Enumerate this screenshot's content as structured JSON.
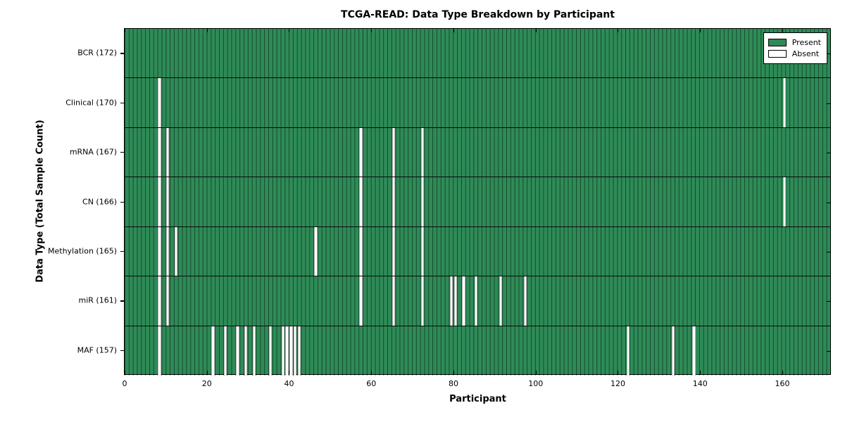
{
  "chart_data": {
    "type": "heatmap",
    "title": "TCGA-READ: Data Type Breakdown by Participant",
    "xlabel": "Participant",
    "ylabel": "Data Type (Total Sample Count)",
    "n_participants": 172,
    "x_ticks": [
      0,
      20,
      40,
      60,
      80,
      100,
      120,
      140,
      160
    ],
    "x_range": [
      0,
      172
    ],
    "grid": "cell-edges",
    "legend_position": "upper right",
    "legend": [
      {
        "label": "Present",
        "color": "#2E8B57"
      },
      {
        "label": "Absent",
        "color": "#FFFFFF"
      }
    ],
    "colors": {
      "present": "#2E8B57",
      "absent": "#FFFFFF",
      "cell_edge": "#1a3d29",
      "axis": "#000000"
    },
    "rows": [
      {
        "label": "BCR (172)",
        "data_type": "BCR",
        "present_count": 172,
        "absent_participants": []
      },
      {
        "label": "Clinical (170)",
        "data_type": "Clinical",
        "present_count": 170,
        "absent_participants": [
          8,
          160
        ]
      },
      {
        "label": "mRNA (167)",
        "data_type": "mRNA",
        "present_count": 167,
        "absent_participants": [
          8,
          10,
          57,
          65,
          72
        ]
      },
      {
        "label": "CN (166)",
        "data_type": "CN",
        "present_count": 166,
        "absent_participants": [
          8,
          10,
          57,
          65,
          72,
          160
        ]
      },
      {
        "label": "Methylation (165)",
        "data_type": "Methylation",
        "present_count": 165,
        "absent_participants": [
          8,
          10,
          12,
          46,
          57,
          65,
          72
        ]
      },
      {
        "label": "miR (161)",
        "data_type": "miR",
        "present_count": 161,
        "absent_participants": [
          8,
          10,
          57,
          65,
          72,
          79,
          80,
          82,
          85,
          91,
          97
        ]
      },
      {
        "label": "MAF (157)",
        "data_type": "MAF",
        "present_count": 157,
        "absent_participants": [
          8,
          21,
          24,
          27,
          29,
          31,
          35,
          38,
          39,
          40,
          41,
          42,
          122,
          133,
          138
        ]
      }
    ]
  }
}
